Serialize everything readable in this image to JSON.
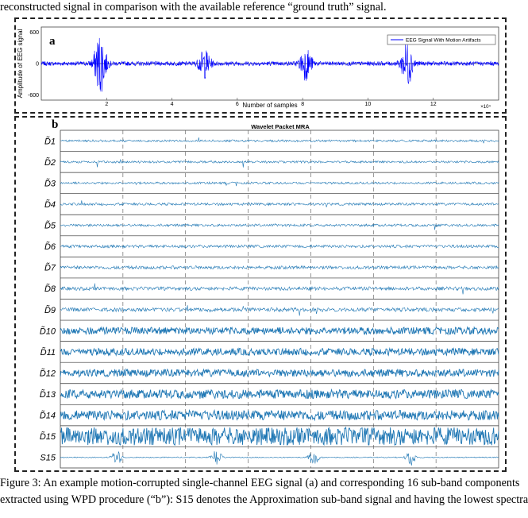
{
  "header_line": "reconstructed signal in comparison with the available reference “ground truth” signal.",
  "panel_a": {
    "label": "a",
    "chart_data": {
      "type": "line",
      "title": "",
      "xlabel": "Number of samples",
      "ylabel": "Amplitude of EEG signal",
      "x_exponent": "×10⁴",
      "xlim": [
        0,
        14
      ],
      "ylim": [
        -700,
        700
      ],
      "x_ticks": [
        2,
        4,
        6,
        8,
        10,
        12
      ],
      "x_tick_labels": [
        "2",
        "4",
        "6",
        "8",
        "10",
        "12"
      ],
      "y_ticks": [
        600,
        0,
        -600
      ],
      "y_tick_labels": [
        "600",
        "0",
        "-600"
      ],
      "series": [
        {
          "name": "EEG Signal With Motion Artifacts",
          "color": "#0000ff",
          "baseline_amplitude": 40,
          "artifact_bursts": [
            {
              "center": 1.8,
              "amplitude": 580
            },
            {
              "center": 5.0,
              "amplitude": 260
            },
            {
              "center": 8.1,
              "amplitude": 300
            },
            {
              "center": 11.2,
              "amplitude": 430
            }
          ]
        }
      ],
      "legend_position": "top-right",
      "grid": false
    }
  },
  "panel_b": {
    "label": "b",
    "chart_data": {
      "type": "line",
      "title": "Wavelet Packet MRA",
      "xlim": [
        0,
        14
      ],
      "grid": true,
      "grid_x": [
        2,
        4,
        6,
        8,
        10,
        12
      ],
      "rows": [
        {
          "name": "D̃",
          "index": "1",
          "amplitude": 0.12
        },
        {
          "name": "D̃",
          "index": "2",
          "amplitude": 0.12
        },
        {
          "name": "D̃",
          "index": "3",
          "amplitude": 0.12
        },
        {
          "name": "D̃",
          "index": "4",
          "amplitude": 0.14
        },
        {
          "name": "D̃",
          "index": "5",
          "amplitude": 0.14
        },
        {
          "name": "D̃",
          "index": "6",
          "amplitude": 0.16
        },
        {
          "name": "D̃",
          "index": "7",
          "amplitude": 0.18
        },
        {
          "name": "D̃",
          "index": "8",
          "amplitude": 0.2
        },
        {
          "name": "D̃",
          "index": "9",
          "amplitude": 0.22
        },
        {
          "name": "D̃",
          "index": "10",
          "amplitude": 0.4
        },
        {
          "name": "D̃",
          "index": "11",
          "amplitude": 0.4
        },
        {
          "name": "D̃",
          "index": "12",
          "amplitude": 0.42
        },
        {
          "name": "D̃",
          "index": "13",
          "amplitude": 0.5
        },
        {
          "name": "D̃",
          "index": "14",
          "amplitude": 0.55
        },
        {
          "name": "D̃",
          "index": "15",
          "amplitude": 1.0
        },
        {
          "name": "S",
          "index": "15",
          "amplitude": 0.25
        }
      ],
      "s15_bursts": [
        1.8,
        5.0,
        8.1,
        11.2
      ],
      "color": "#1f77b4"
    }
  },
  "caption_line1": "Figure 3: An example motion-corrupted single-channel EEG signal (a) and corresponding 16 sub-band components",
  "caption_line2": "extracted using WPD procedure (“b”): S15 denotes the Approximation sub-band signal and having the lowest spectra"
}
